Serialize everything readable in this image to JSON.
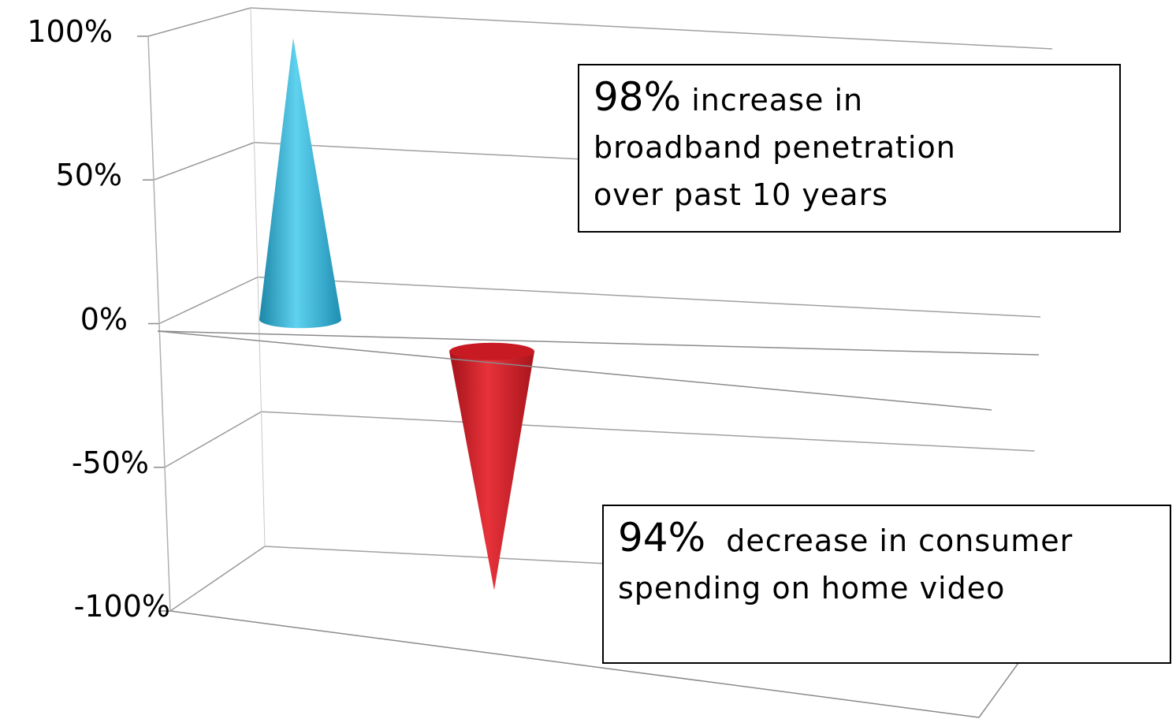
{
  "chart_data": {
    "type": "bar",
    "shape": "cone",
    "categories": [
      "",
      ""
    ],
    "series": [
      {
        "values": [
          98,
          -94
        ]
      }
    ],
    "colors": [
      "#3DB3D8",
      "#D8202A"
    ],
    "ylim": [
      -100,
      100
    ],
    "yticks": [
      "100%",
      "50%",
      "0%",
      "-50%",
      "-100%"
    ],
    "ytick_values": [
      100,
      50,
      0,
      -50,
      -100
    ],
    "grid": true,
    "annotations": [
      {
        "big": "98%",
        "text_line1": " increase in",
        "text_line2": "broadband penetration",
        "text_line3": "over past 10 years"
      },
      {
        "big": "94%",
        "text_line1": "  decrease in consumer",
        "text_line2": "spending on home video"
      }
    ]
  }
}
